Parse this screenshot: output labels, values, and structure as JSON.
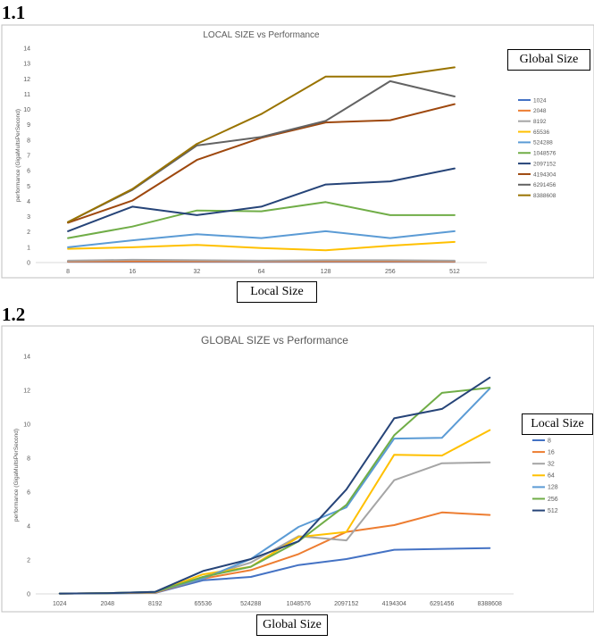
{
  "headings": {
    "first": "1.1",
    "second": "1.2"
  },
  "boxes": {
    "global_size": "Global Size",
    "local_size_1": "Local Size",
    "local_size_2": "Local Size",
    "global_size_2": "Global Size"
  },
  "chart_data": [
    {
      "type": "line",
      "title": "LOCAL SIZE vs Performance",
      "xlabel": "",
      "ylabel": "performance (GigaMultsPerSecond)",
      "ylim": [
        0,
        14
      ],
      "yticks": [
        0,
        1,
        2,
        3,
        4,
        5,
        6,
        7,
        8,
        9,
        10,
        11,
        12,
        13,
        14
      ],
      "categories": [
        "8",
        "16",
        "32",
        "64",
        "128",
        "256",
        "512"
      ],
      "legend_position": "right",
      "grid": false,
      "series": [
        {
          "name": "1024",
          "color": "#4472c4",
          "values": [
            0.05,
            0.05,
            0.05,
            0.05,
            0.05,
            0.05,
            0.05
          ]
        },
        {
          "name": "2048",
          "color": "#ed7d31",
          "values": [
            0.07,
            0.08,
            0.08,
            0.08,
            0.08,
            0.08,
            0.07
          ]
        },
        {
          "name": "8192",
          "color": "#a5a5a5",
          "values": [
            0.12,
            0.18,
            0.15,
            0.12,
            0.15,
            0.15,
            0.12
          ]
        },
        {
          "name": "65536",
          "color": "#ffc000",
          "values": [
            0.9,
            1.0,
            1.15,
            0.95,
            0.8,
            1.1,
            1.35
          ]
        },
        {
          "name": "524288",
          "color": "#5b9bd5",
          "values": [
            1.0,
            1.45,
            1.85,
            1.6,
            2.05,
            1.6,
            2.05
          ]
        },
        {
          "name": "1048576",
          "color": "#70ad47",
          "values": [
            1.6,
            2.35,
            3.4,
            3.35,
            3.95,
            3.1,
            3.1
          ]
        },
        {
          "name": "2097152",
          "color": "#264478",
          "values": [
            2.05,
            3.65,
            3.1,
            3.65,
            5.1,
            5.3,
            6.15
          ]
        },
        {
          "name": "4194304",
          "color": "#9e480e",
          "values": [
            2.6,
            4.05,
            6.7,
            8.15,
            9.15,
            9.3,
            10.35
          ]
        },
        {
          "name": "6291456",
          "color": "#636363",
          "values": [
            2.65,
            4.75,
            7.65,
            8.2,
            9.25,
            11.85,
            10.85
          ]
        },
        {
          "name": "8388608",
          "color": "#997300",
          "values": [
            2.65,
            4.8,
            7.75,
            9.7,
            12.15,
            12.15,
            12.75
          ]
        }
      ]
    },
    {
      "type": "line",
      "title": "GLOBAL SIZE vs Performance",
      "xlabel": "",
      "ylabel": "performance (GigaMultsPerSecond)",
      "ylim": [
        0,
        14
      ],
      "yticks": [
        0,
        2,
        4,
        6,
        8,
        10,
        12,
        14
      ],
      "categories": [
        "1024",
        "2048",
        "8192",
        "65536",
        "524288",
        "1048576",
        "2097152",
        "4194304",
        "6291456",
        "8388608"
      ],
      "legend_position": "right",
      "grid": false,
      "series": [
        {
          "name": "8",
          "color": "#4472c4",
          "values": [
            0.02,
            0.03,
            0.06,
            0.8,
            1.0,
            1.7,
            2.05,
            2.6,
            2.65,
            2.7
          ]
        },
        {
          "name": "16",
          "color": "#ed7d31",
          "values": [
            0.02,
            0.04,
            0.08,
            0.9,
            1.4,
            2.35,
            3.65,
            4.05,
            4.8,
            4.65
          ]
        },
        {
          "name": "32",
          "color": "#a5a5a5",
          "values": [
            0.02,
            0.04,
            0.1,
            1.0,
            1.85,
            3.4,
            3.15,
            6.7,
            7.7,
            7.75
          ]
        },
        {
          "name": "64",
          "color": "#ffc000",
          "values": [
            0.02,
            0.04,
            0.1,
            1.15,
            1.6,
            3.35,
            3.65,
            8.2,
            8.15,
            9.65
          ]
        },
        {
          "name": "128",
          "color": "#5b9bd5",
          "values": [
            0.02,
            0.04,
            0.12,
            0.9,
            2.05,
            3.95,
            5.1,
            9.15,
            9.2,
            12.1
          ]
        },
        {
          "name": "256",
          "color": "#70ad47",
          "values": [
            0.02,
            0.04,
            0.12,
            1.0,
            1.6,
            3.1,
            5.25,
            9.35,
            11.85,
            12.15
          ]
        },
        {
          "name": "512",
          "color": "#264478",
          "values": [
            0.02,
            0.04,
            0.12,
            1.35,
            2.05,
            3.1,
            6.15,
            10.35,
            10.9,
            12.75
          ]
        }
      ]
    }
  ]
}
